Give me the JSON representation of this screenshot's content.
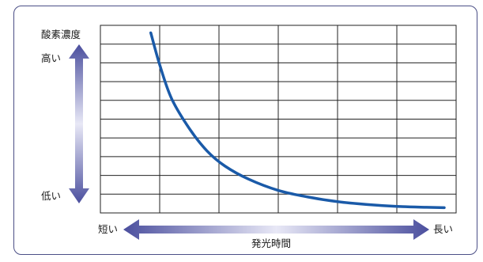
{
  "chart_data": {
    "type": "line",
    "ylabel": "酸素濃度",
    "xlabel": "発光時間",
    "y_axis": {
      "high_label": "高い",
      "low_label": "低い"
    },
    "x_axis": {
      "short_label": "短い",
      "long_label": "長い"
    },
    "grid": true,
    "grid_columns": 6,
    "grid_rows": 10,
    "ticks_labeled": false,
    "xlim": [
      0,
      6
    ],
    "ylim": [
      0,
      10
    ],
    "series": [
      {
        "color": "#1a5aa8",
        "x": [
          0.85,
          1.0,
          1.2,
          1.5,
          1.8,
          2.1,
          2.5,
          3.0,
          3.5,
          4.0,
          4.5,
          5.0,
          5.5,
          5.8
        ],
        "y": [
          9.6,
          7.9,
          6.1,
          4.5,
          3.3,
          2.5,
          1.8,
          1.2,
          0.85,
          0.6,
          0.45,
          0.35,
          0.3,
          0.28
        ]
      }
    ]
  },
  "colors": {
    "frame": "#4b4f86",
    "grid": "#222222",
    "arrow_dark": "#4b4f9e",
    "arrow_light": "#e8e8f6",
    "curve": "#1a5aa8"
  }
}
